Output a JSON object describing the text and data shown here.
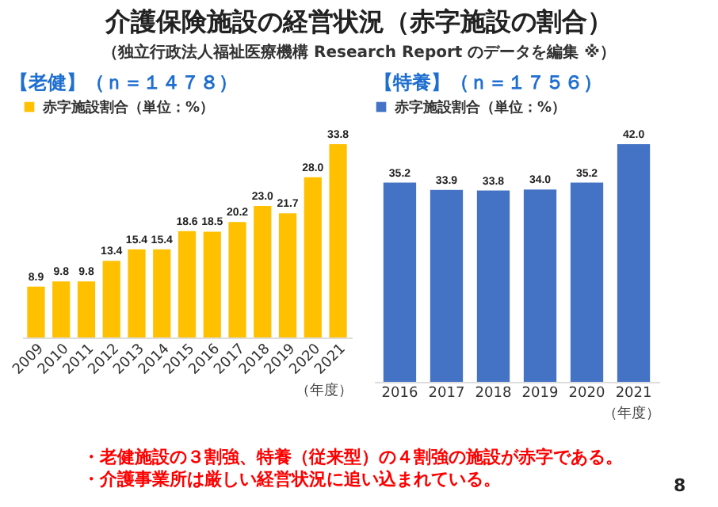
{
  "chart_data": [
    {
      "type": "bar",
      "title": "介護保険施設の経営状況（赤字施設の割合）",
      "subtitle": "（独立行政法人福祉医療機構 Research Report のデータを編集 ※）",
      "annotations": [
        "・老健施設の３割強、特養（従来型）の４割強の施設が赤字である。",
        "・介護事業所は厳しい経営状況に追い込まれている。",
        "8"
      ],
      "legend_title": "【老健】（ｎ＝１４７８）",
      "xlabel": "（年度）",
      "categories": [
        "2009",
        "2010",
        "2011",
        "2012",
        "2013",
        "2014",
        "2015",
        "2016",
        "2017",
        "2018",
        "2019",
        "2020",
        "2021"
      ],
      "series": [
        {
          "name": "赤字施設割合（単位：%）",
          "color": "#ffc000",
          "values": [
            8.9,
            9.8,
            9.8,
            13.4,
            15.4,
            15.4,
            18.6,
            18.5,
            20.2,
            23.0,
            21.7,
            28.0,
            33.8
          ],
          "value_labels": [
            "8.9",
            "9.8",
            "9.8",
            "13.4",
            "15.4",
            "15.4",
            "18.6",
            "18.5",
            "20.2",
            "23.0",
            "21.7",
            "28.0",
            "33.8"
          ]
        }
      ],
      "legend": "top left",
      "tick_labels": "x"
    },
    {
      "type": "bar",
      "legend_title": "【特養】（ｎ＝１７５６）",
      "xlabel": "（年度）",
      "categories": [
        "2016",
        "2017",
        "2018",
        "2019",
        "2020",
        "2021"
      ],
      "series": [
        {
          "name": "赤字施設割合（単位：%）",
          "color": "#4472c4",
          "values": [
            35.2,
            33.9,
            33.8,
            34.0,
            35.2,
            42.0
          ],
          "value_labels": [
            "35.2",
            "33.9",
            "33.8",
            "34.0",
            "35.2",
            "42.0"
          ]
        }
      ],
      "legend": "top left",
      "tick_labels": "x"
    }
  ]
}
